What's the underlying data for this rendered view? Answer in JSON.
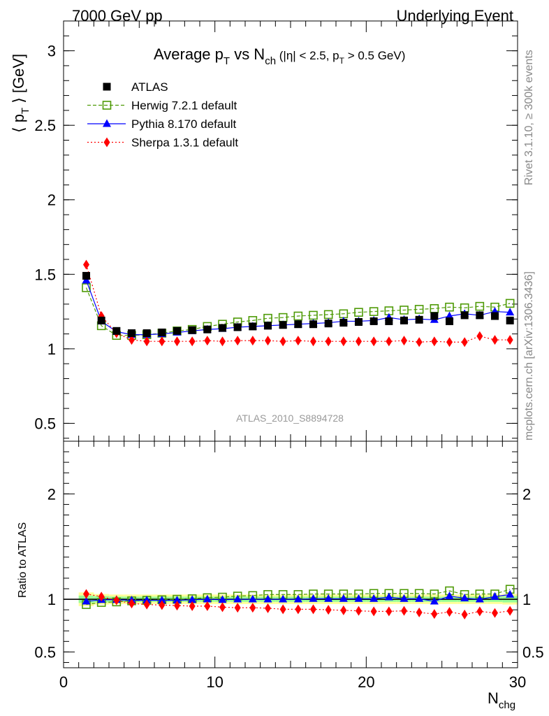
{
  "header": {
    "left": "7000 GeV pp",
    "right": "Underlying Event"
  },
  "side_labels": {
    "rivet": "Rivet 3.1.10, ≥ 300k events",
    "mcplots": "mcplots.cern.ch [arXiv:1306.3436]"
  },
  "title": {
    "main_pre": "Average p",
    "main_pt_sub": "T",
    "main_vs": " vs N",
    "main_ch_sub": "ch",
    "cuts_pre": " (|η| < 2.5, p",
    "cuts_sub": "T",
    "cuts_post": " > 0.5 GeV)"
  },
  "watermark": "ATLAS_2010_S8894728",
  "y_label_top": {
    "pre": "⟨ p",
    "sub": "T",
    "post": " ⟩ [GeV]"
  },
  "y_label_bottom": "Ratio to ATLAS",
  "x_label": {
    "main": "N",
    "sub": "chg"
  },
  "colors": {
    "atlas": "#000000",
    "herwig": "#4e9a06",
    "pythia": "#0000ff",
    "sherpa": "#ff0000",
    "band_outer": "#ffff99",
    "band_inner": "#99ff99"
  },
  "chart_data": [
    {
      "type": "scatter",
      "xlabel": "N_chg",
      "ylabel": "⟨ p_T ⟩ [GeV]",
      "xlim": [
        0,
        30
      ],
      "ylim": [
        0.38,
        3.2
      ],
      "x_ticks": [
        0,
        10,
        20,
        30
      ],
      "y_ticks": [
        0.5,
        1,
        1.5,
        2,
        2.5,
        3
      ],
      "legend_position": "top-left",
      "x": [
        1.5,
        2.5,
        3.5,
        4.5,
        5.5,
        6.5,
        7.5,
        8.5,
        9.5,
        10.5,
        11.5,
        12.5,
        13.5,
        14.5,
        15.5,
        16.5,
        17.5,
        18.5,
        19.5,
        20.5,
        21.5,
        22.5,
        23.5,
        24.5,
        25.5,
        26.5,
        27.5,
        28.5,
        29.5
      ],
      "series": [
        {
          "name": "ATLAS",
          "marker": "square",
          "values": [
            1.49,
            1.19,
            1.12,
            1.105,
            1.105,
            1.11,
            1.12,
            1.125,
            1.13,
            1.14,
            1.145,
            1.15,
            1.155,
            1.16,
            1.165,
            1.165,
            1.17,
            1.175,
            1.18,
            1.185,
            1.185,
            1.19,
            1.195,
            1.22,
            1.185,
            1.225,
            1.225,
            1.22,
            1.19
          ]
        },
        {
          "name": "Herwig 7.2.1 default",
          "marker": "open-square",
          "line": "dashed",
          "values": [
            1.41,
            1.155,
            1.09,
            1.09,
            1.095,
            1.105,
            1.12,
            1.13,
            1.15,
            1.165,
            1.18,
            1.19,
            1.205,
            1.21,
            1.22,
            1.225,
            1.23,
            1.235,
            1.245,
            1.25,
            1.255,
            1.26,
            1.265,
            1.27,
            1.28,
            1.275,
            1.285,
            1.28,
            1.305
          ]
        },
        {
          "name": "Pythia 8.170 default",
          "marker": "triangle",
          "line": "solid",
          "values": [
            1.46,
            1.185,
            1.115,
            1.095,
            1.095,
            1.1,
            1.11,
            1.12,
            1.13,
            1.135,
            1.145,
            1.15,
            1.155,
            1.16,
            1.165,
            1.17,
            1.175,
            1.185,
            1.185,
            1.19,
            1.21,
            1.195,
            1.2,
            1.195,
            1.22,
            1.235,
            1.225,
            1.25,
            1.245
          ]
        },
        {
          "name": "Sherpa 1.3.1 default",
          "marker": "diamond",
          "line": "dotted",
          "values": [
            1.565,
            1.22,
            1.105,
            1.06,
            1.05,
            1.05,
            1.05,
            1.05,
            1.055,
            1.05,
            1.055,
            1.055,
            1.055,
            1.05,
            1.055,
            1.05,
            1.05,
            1.05,
            1.05,
            1.05,
            1.05,
            1.055,
            1.045,
            1.05,
            1.045,
            1.045,
            1.085,
            1.06,
            1.06
          ]
        }
      ]
    },
    {
      "type": "scatter",
      "xlabel": "N_chg",
      "ylabel": "Ratio to ATLAS",
      "xlim": [
        0,
        30
      ],
      "ylim": [
        0.35,
        2.5
      ],
      "x_ticks": [
        0,
        10,
        20,
        30
      ],
      "y_ticks": [
        0.5,
        1,
        2
      ],
      "x": [
        1.5,
        2.5,
        3.5,
        4.5,
        5.5,
        6.5,
        7.5,
        8.5,
        9.5,
        10.5,
        11.5,
        12.5,
        13.5,
        14.5,
        15.5,
        16.5,
        17.5,
        18.5,
        19.5,
        20.5,
        21.5,
        22.5,
        23.5,
        24.5,
        25.5,
        26.5,
        27.5,
        28.5,
        29.5
      ],
      "reference_band": {
        "outer_halfwidth": [
          0.065,
          0.05,
          0.045,
          0.045,
          0.045,
          0.045,
          0.045,
          0.045,
          0.045,
          0.045,
          0.045,
          0.045,
          0.045,
          0.045,
          0.045,
          0.045,
          0.045,
          0.045,
          0.045,
          0.045,
          0.045,
          0.045,
          0.045,
          0.045,
          0.045,
          0.045,
          0.045,
          0.045,
          0.05
        ],
        "inner_halfwidth": [
          0.035,
          0.03,
          0.025,
          0.025,
          0.025,
          0.025,
          0.025,
          0.025,
          0.025,
          0.025,
          0.025,
          0.025,
          0.025,
          0.025,
          0.025,
          0.025,
          0.025,
          0.025,
          0.025,
          0.025,
          0.025,
          0.025,
          0.025,
          0.025,
          0.025,
          0.025,
          0.025,
          0.025,
          0.03
        ]
      },
      "series": [
        {
          "name": "Herwig 7.2.1 default",
          "values": [
            0.95,
            0.97,
            0.975,
            0.985,
            0.99,
            0.995,
            1.0,
            1.005,
            1.015,
            1.02,
            1.03,
            1.035,
            1.045,
            1.045,
            1.045,
            1.05,
            1.05,
            1.05,
            1.05,
            1.055,
            1.055,
            1.055,
            1.055,
            1.05,
            1.08,
            1.045,
            1.05,
            1.05,
            1.095
          ]
        },
        {
          "name": "Pythia 8.170 default",
          "values": [
            0.98,
            0.995,
            0.995,
            0.99,
            0.99,
            0.99,
            0.99,
            0.995,
            1.0,
            0.995,
            1.0,
            1.0,
            1.0,
            1.0,
            1.0,
            1.005,
            1.005,
            1.005,
            1.005,
            1.005,
            1.02,
            1.005,
            1.005,
            0.98,
            1.03,
            1.01,
            1.0,
            1.025,
            1.045
          ]
        },
        {
          "name": "Sherpa 1.3.1 default",
          "values": [
            1.05,
            1.025,
            0.99,
            0.96,
            0.95,
            0.945,
            0.94,
            0.935,
            0.935,
            0.925,
            0.92,
            0.92,
            0.915,
            0.905,
            0.905,
            0.905,
            0.9,
            0.895,
            0.89,
            0.885,
            0.885,
            0.89,
            0.875,
            0.86,
            0.88,
            0.855,
            0.885,
            0.87,
            0.89
          ]
        }
      ]
    }
  ]
}
